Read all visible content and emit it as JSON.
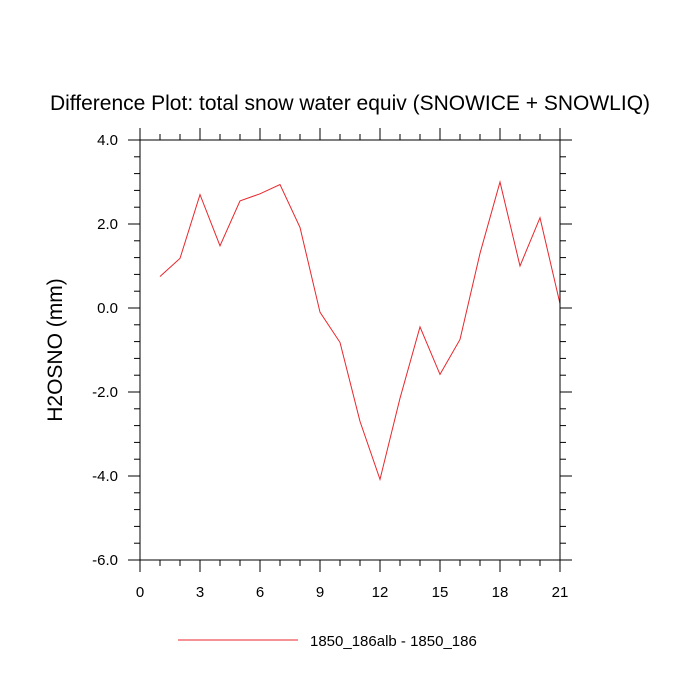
{
  "chart_data": {
    "type": "line",
    "title": "Difference Plot: total snow water equiv (SNOWICE + SNOWLIQ)",
    "xlabel": "",
    "ylabel": "H2OSNO  (mm)",
    "xlim": [
      0,
      21
    ],
    "ylim": [
      -6,
      4
    ],
    "x_ticks": [
      0,
      3,
      6,
      9,
      12,
      15,
      18,
      21
    ],
    "x_tick_labels": [
      "0",
      "3",
      "6",
      "9",
      "12",
      "15",
      "18",
      "21"
    ],
    "x_minor_step": 1,
    "y_ticks": [
      -6,
      -4,
      -2,
      0,
      2,
      4
    ],
    "y_tick_labels": [
      "-6.0",
      "-4.0",
      "-2.0",
      "0.0",
      "2.0",
      "4.0"
    ],
    "y_minor_step": 0.4,
    "grid": false,
    "legend_position": "bottom",
    "series": [
      {
        "name": "1850_186alb - 1850_186",
        "color": "#e8262b",
        "x": [
          1,
          2,
          3,
          4,
          5,
          6,
          7,
          8,
          9,
          10,
          11,
          12,
          13,
          14,
          15,
          16,
          17,
          18,
          19,
          20,
          21
        ],
        "y": [
          0.75,
          1.18,
          2.7,
          1.48,
          2.55,
          2.72,
          2.94,
          1.92,
          -0.1,
          -0.82,
          -2.7,
          -4.08,
          -2.15,
          -0.45,
          -1.58,
          -0.75,
          1.3,
          3.0,
          1.0,
          2.15,
          0.1
        ]
      }
    ]
  }
}
